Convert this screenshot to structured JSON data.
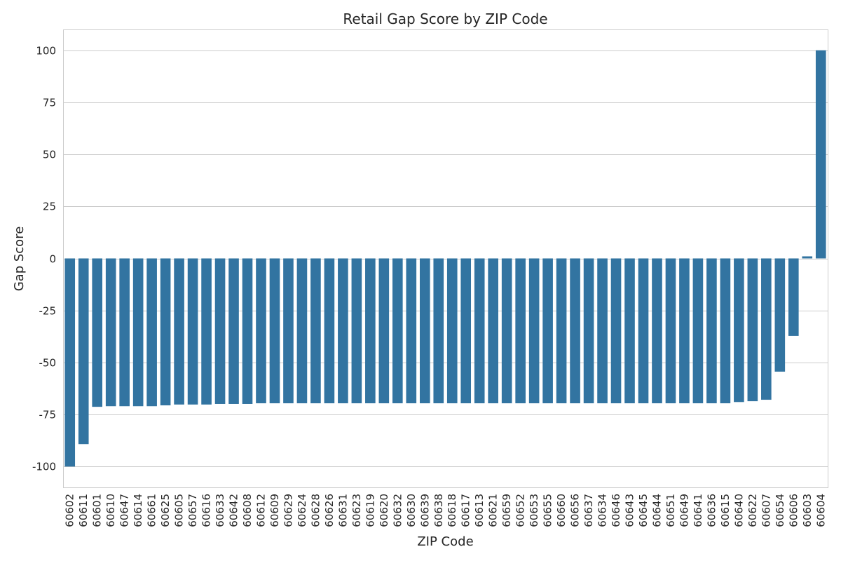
{
  "chart_data": {
    "type": "bar",
    "title": "Retail Gap Score by ZIP Code",
    "xlabel": "ZIP Code",
    "ylabel": "Gap Score",
    "ylim": [
      -110,
      110
    ],
    "yticks": [
      100,
      75,
      50,
      25,
      0,
      -25,
      -50,
      -75,
      -100
    ],
    "grid": true,
    "bar_color": "#3274a1",
    "categories": [
      "60602",
      "60611",
      "60601",
      "60610",
      "60647",
      "60614",
      "60661",
      "60625",
      "60605",
      "60657",
      "60616",
      "60633",
      "60642",
      "60608",
      "60612",
      "60609",
      "60629",
      "60624",
      "60628",
      "60626",
      "60631",
      "60623",
      "60619",
      "60620",
      "60632",
      "60630",
      "60639",
      "60638",
      "60618",
      "60617",
      "60613",
      "60621",
      "60659",
      "60652",
      "60653",
      "60655",
      "60660",
      "60656",
      "60637",
      "60634",
      "60646",
      "60643",
      "60645",
      "60644",
      "60651",
      "60649",
      "60641",
      "60636",
      "60615",
      "60640",
      "60622",
      "60607",
      "60654",
      "60606",
      "60603",
      "60604"
    ],
    "values": [
      -100,
      -89.2,
      -71.3,
      -71,
      -71,
      -71,
      -71,
      -70.6,
      -70.2,
      -70.2,
      -70.2,
      -69.9,
      -69.9,
      -69.9,
      -69.6,
      -69.6,
      -69.6,
      -69.6,
      -69.6,
      -69.6,
      -69.6,
      -69.6,
      -69.6,
      -69.6,
      -69.6,
      -69.6,
      -69.6,
      -69.6,
      -69.6,
      -69.6,
      -69.6,
      -69.6,
      -69.6,
      -69.6,
      -69.6,
      -69.6,
      -69.6,
      -69.6,
      -69.6,
      -69.6,
      -69.6,
      -69.6,
      -69.6,
      -69.6,
      -69.6,
      -69.6,
      -69.6,
      -69.6,
      -69.6,
      -69,
      -68.6,
      -67.9,
      -54.4,
      -37.2,
      1,
      100
    ]
  }
}
